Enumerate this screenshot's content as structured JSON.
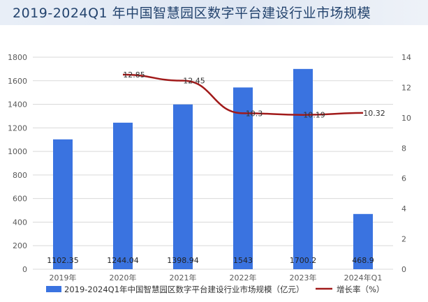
{
  "title": "2019-2024Q1 年中国智慧园区数字平台建设行业市场规模",
  "chart_data": {
    "type": "bar",
    "categories": [
      "2019年",
      "2020年",
      "2021年",
      "2022年",
      "2023年",
      "2024年Q1"
    ],
    "series": [
      {
        "name": "2019-2024Q1年中国智慧园区数字平台建设行业市场规模（亿元）",
        "type": "bar",
        "axis": "left",
        "values": [
          1102.35,
          1244.04,
          1398.94,
          1543,
          1700.2,
          468.9
        ],
        "labels": [
          "1102.35",
          "1244.04",
          "1398.94",
          "1543",
          "1700.2",
          "468.9"
        ],
        "color": "#3a73e0"
      },
      {
        "name": "增长率（%）",
        "type": "line",
        "axis": "right",
        "values": [
          null,
          12.85,
          12.45,
          10.3,
          10.19,
          10.32
        ],
        "labels": [
          "",
          "12.85",
          "12.45",
          "10.3",
          "10.19",
          "10.32"
        ],
        "color": "#a11a1a"
      }
    ],
    "ylim_left": [
      0,
      1800
    ],
    "yticks_left": [
      "0",
      "200",
      "400",
      "600",
      "800",
      "1000",
      "1200",
      "1400",
      "1600",
      "1800"
    ],
    "ylim_right": [
      0,
      14
    ],
    "yticks_right": [
      "0",
      "2",
      "4",
      "6",
      "8",
      "10",
      "12",
      "14"
    ],
    "grid": true,
    "legend_position": "bottom"
  }
}
